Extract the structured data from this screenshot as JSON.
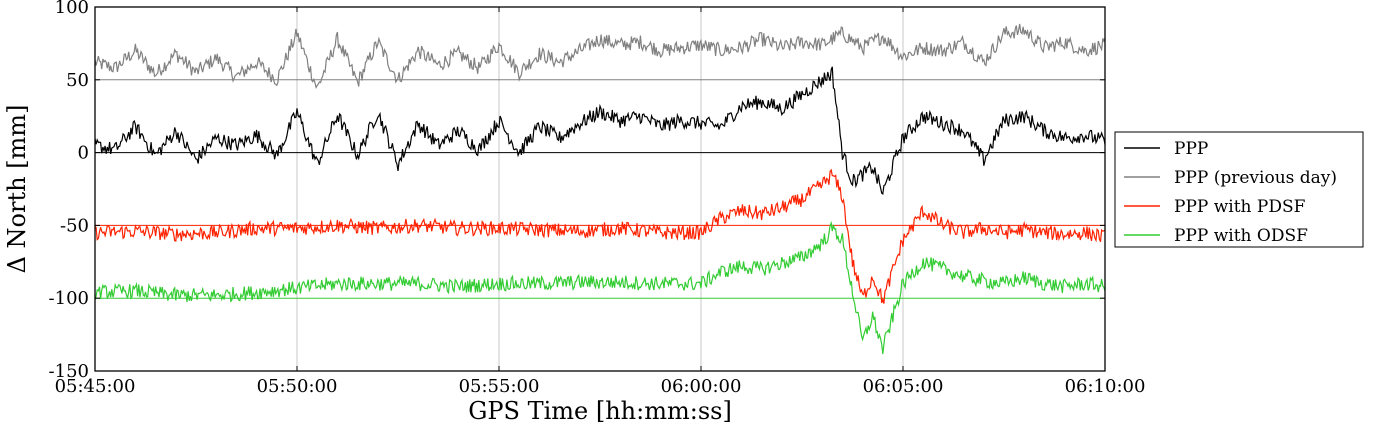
{
  "chart_data": {
    "type": "line",
    "xlabel": "GPS Time [hh:mm:ss]",
    "ylabel": "Δ North [mm]",
    "x_range": [
      "05:45:00",
      "06:10:00"
    ],
    "x_ticks": [
      "05:45:00",
      "05:50:00",
      "05:55:00",
      "06:00:00",
      "06:05:00",
      "06:10:00"
    ],
    "ylim": [
      -150,
      100
    ],
    "y_ticks": [
      "100",
      "50",
      "0",
      "-50",
      "-100",
      "-150"
    ],
    "y_tick_values": [
      100,
      50,
      0,
      -50,
      -100,
      -150
    ],
    "grid": "vertical",
    "legend_position": "right, outside",
    "legend": [
      "PPP",
      "PPP (previous day)",
      "PPP with PDSF",
      "PPP with ODSF"
    ],
    "series": [
      {
        "name": "PPP (previous day)",
        "color": "#808080",
        "baseline": 50,
        "x": [
          "05:45:00",
          "05:45:30",
          "05:46:00",
          "05:46:30",
          "05:47:00",
          "05:47:30",
          "05:48:00",
          "05:48:30",
          "05:49:00",
          "05:49:30",
          "05:50:00",
          "05:50:30",
          "05:51:00",
          "05:51:30",
          "05:52:00",
          "05:52:30",
          "05:53:00",
          "05:53:30",
          "05:54:00",
          "05:54:30",
          "05:55:00",
          "05:55:30",
          "05:56:00",
          "05:56:30",
          "05:57:00",
          "05:57:30",
          "05:58:00",
          "05:58:30",
          "05:59:00",
          "05:59:30",
          "06:00:00",
          "06:00:30",
          "06:01:00",
          "06:01:30",
          "06:02:00",
          "06:02:30",
          "06:03:00",
          "06:03:30",
          "06:04:00",
          "06:04:30",
          "06:05:00",
          "06:05:30",
          "06:06:00",
          "06:06:30",
          "06:07:00",
          "06:07:30",
          "06:08:00",
          "06:08:30",
          "06:09:00",
          "06:09:30",
          "06:10:00"
        ],
        "y": [
          62,
          58,
          70,
          54,
          68,
          55,
          65,
          52,
          62,
          50,
          82,
          44,
          78,
          48,
          76,
          50,
          70,
          60,
          68,
          58,
          74,
          55,
          68,
          62,
          70,
          78,
          74,
          76,
          70,
          72,
          74,
          70,
          72,
          78,
          72,
          76,
          74,
          82,
          72,
          80,
          66,
          72,
          70,
          76,
          62,
          82,
          84,
          72,
          76,
          70,
          74
        ]
      },
      {
        "name": "PPP",
        "color": "#000000",
        "baseline": 0,
        "x": [
          "05:45:00",
          "05:45:30",
          "05:46:00",
          "05:46:30",
          "05:47:00",
          "05:47:30",
          "05:48:00",
          "05:48:30",
          "05:49:00",
          "05:49:30",
          "05:50:00",
          "05:50:30",
          "05:51:00",
          "05:51:30",
          "05:52:00",
          "05:52:30",
          "05:53:00",
          "05:53:30",
          "05:54:00",
          "05:54:30",
          "05:55:00",
          "05:55:30",
          "05:56:00",
          "05:56:30",
          "05:57:00",
          "05:57:30",
          "05:58:00",
          "05:58:30",
          "05:59:00",
          "05:59:30",
          "06:00:00",
          "06:00:30",
          "06:01:00",
          "06:01:30",
          "06:02:00",
          "06:02:30",
          "06:03:00",
          "06:03:15",
          "06:03:30",
          "06:03:45",
          "06:04:00",
          "06:04:15",
          "06:04:30",
          "06:05:00",
          "06:05:30",
          "06:06:00",
          "06:06:30",
          "06:07:00",
          "06:07:30",
          "06:08:00",
          "06:08:30",
          "06:09:00",
          "06:09:30",
          "06:10:00"
        ],
        "y": [
          5,
          2,
          18,
          -2,
          15,
          -5,
          10,
          5,
          12,
          -2,
          28,
          -8,
          26,
          -2,
          28,
          -8,
          20,
          5,
          15,
          2,
          22,
          0,
          18,
          10,
          20,
          28,
          22,
          25,
          18,
          22,
          20,
          18,
          32,
          35,
          30,
          40,
          50,
          55,
          0,
          -20,
          -15,
          -10,
          -28,
          10,
          25,
          20,
          15,
          -5,
          22,
          25,
          15,
          10,
          12,
          8
        ]
      },
      {
        "name": "PPP with PDSF",
        "color": "#ff2200",
        "baseline": -50,
        "x": [
          "05:45:00",
          "05:46:00",
          "05:47:00",
          "05:48:00",
          "05:49:00",
          "05:50:00",
          "05:51:00",
          "05:52:00",
          "05:53:00",
          "05:54:00",
          "05:55:00",
          "05:56:00",
          "05:57:00",
          "05:58:00",
          "05:59:00",
          "06:00:00",
          "06:00:30",
          "06:01:00",
          "06:01:30",
          "06:02:00",
          "06:02:30",
          "06:03:00",
          "06:03:15",
          "06:03:30",
          "06:03:45",
          "06:04:00",
          "06:04:15",
          "06:04:30",
          "06:05:00",
          "06:05:30",
          "06:06:00",
          "06:06:30",
          "06:07:00",
          "06:07:30",
          "06:08:00",
          "06:08:30",
          "06:09:00",
          "06:09:30",
          "06:10:00"
        ],
        "y": [
          -55,
          -54,
          -56,
          -55,
          -52,
          -52,
          -50,
          -52,
          -50,
          -52,
          -52,
          -53,
          -54,
          -52,
          -55,
          -55,
          -45,
          -40,
          -42,
          -38,
          -32,
          -22,
          -15,
          -30,
          -75,
          -100,
          -85,
          -102,
          -60,
          -40,
          -50,
          -55,
          -52,
          -55,
          -53,
          -55,
          -56,
          -55,
          -58
        ]
      },
      {
        "name": "PPP with ODSF",
        "color": "#33cc33",
        "baseline": -100,
        "x": [
          "05:45:00",
          "05:46:00",
          "05:47:00",
          "05:48:00",
          "05:49:00",
          "05:50:00",
          "05:51:00",
          "05:52:00",
          "05:53:00",
          "05:54:00",
          "05:55:00",
          "05:56:00",
          "05:57:00",
          "05:58:00",
          "05:59:00",
          "06:00:00",
          "06:00:30",
          "06:01:00",
          "06:01:30",
          "06:02:00",
          "06:02:30",
          "06:03:00",
          "06:03:15",
          "06:03:30",
          "06:03:45",
          "06:04:00",
          "06:04:15",
          "06:04:30",
          "06:05:00",
          "06:05:30",
          "06:06:00",
          "06:06:30",
          "06:07:00",
          "06:07:30",
          "06:08:00",
          "06:08:30",
          "06:09:00",
          "06:09:30",
          "06:10:00"
        ],
        "y": [
          -96,
          -95,
          -98,
          -98,
          -96,
          -93,
          -90,
          -90,
          -90,
          -92,
          -90,
          -90,
          -89,
          -89,
          -90,
          -90,
          -82,
          -78,
          -80,
          -76,
          -72,
          -62,
          -52,
          -60,
          -95,
          -130,
          -112,
          -135,
          -90,
          -75,
          -80,
          -85,
          -88,
          -90,
          -86,
          -90,
          -92,
          -90,
          -92
        ]
      }
    ]
  }
}
